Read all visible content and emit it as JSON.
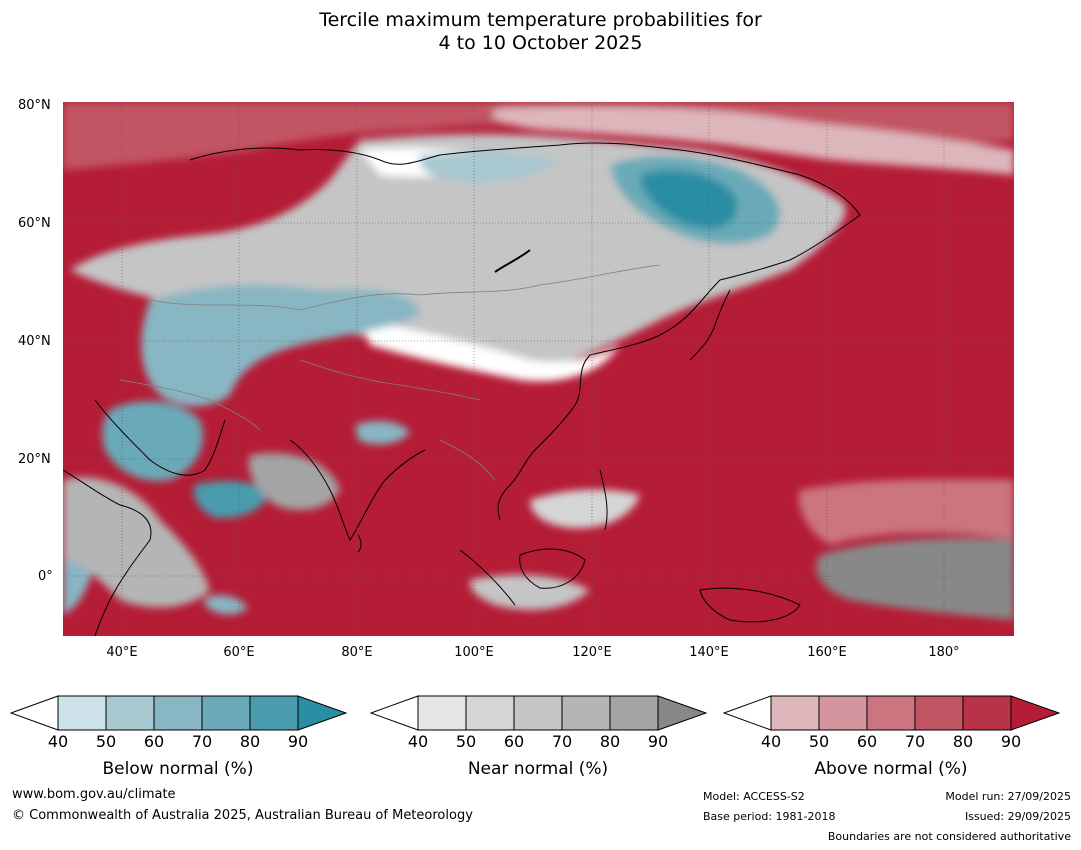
{
  "header": {
    "title_line1": "Tercile maximum temperature probabilities for",
    "title_line2": "4 to 10 October 2025"
  },
  "map": {
    "lat_labels": [
      "80°N",
      "60°N",
      "40°N",
      "20°N",
      "0°"
    ],
    "lon_labels": [
      "40°E",
      "60°E",
      "80°E",
      "100°E",
      "120°E",
      "140°E",
      "160°E",
      "180°"
    ],
    "colors": {
      "ocean_above": "#b51c36",
      "coast": "#000000",
      "border": "#808080"
    }
  },
  "legend": {
    "ticks": [
      "40",
      "50",
      "60",
      "70",
      "80",
      "90"
    ],
    "below": {
      "title": "Below normal (%)",
      "colors": [
        "#cde2e8",
        "#a8c8d0",
        "#88b6c2",
        "#6aaab8",
        "#4a9cac",
        "#2a8ea3"
      ]
    },
    "near": {
      "title": "Near normal (%)",
      "colors": [
        "#e5e5e5",
        "#d5d5d5",
        "#c5c5c5",
        "#b5b5b5",
        "#a4a4a4",
        "#888888"
      ]
    },
    "above": {
      "title": "Above normal (%)",
      "colors": [
        "#ddb6bc",
        "#d4959e",
        "#cb7580",
        "#c25564",
        "#b83347",
        "#b51c36"
      ]
    }
  },
  "footer": {
    "website": "www.bom.gov.au/climate",
    "copyright": "© Commonwealth of Australia 2025, Australian Bureau of Meteorology",
    "model": "Model: ACCESS-S2",
    "base_period": "Base period: 1981-2018",
    "model_run": "Model run: 27/09/2025",
    "issued": "Issued: 29/09/2025",
    "boundaries_note": "Boundaries are not considered authoritative"
  }
}
